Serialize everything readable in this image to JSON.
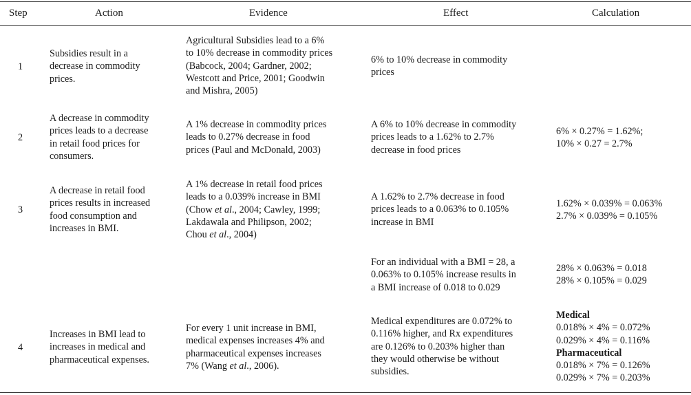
{
  "table": {
    "headers": {
      "step": "Step",
      "action": "Action",
      "evidence": "Evidence",
      "effect": "Effect",
      "calculation": "Calculation"
    },
    "rows": [
      {
        "step": "1",
        "action": "Subsidies result in a\ndecrease in commodity\nprices.",
        "evidence": "Agricultural Subsidies lead to a 6%\nto 10% decrease in commodity prices\n(Babcock, 2004; Gardner, 2002;\nWestcott and Price, 2001; Goodwin\nand Mishra, 2005)",
        "effect": "6% to 10% decrease in commodity\nprices",
        "calculation": ""
      },
      {
        "step": "2",
        "action": "A decrease in commodity\nprices leads to a decrease\nin retail food prices for\nconsumers.",
        "evidence": "A 1% decrease in commodity prices\nleads to 0.27% decrease in food\nprices (Paul and McDonald, 2003)",
        "effect": "A 6% to 10% decrease in commodity\nprices leads to a 1.62% to 2.7%\ndecrease in food prices",
        "calculation": "6% × 0.27% = 1.62%;\n10% × 0.27 = 2.7%"
      },
      {
        "step": "3",
        "action": "A decrease in retail food\nprices results in increased\nfood consumption and\nincreases in BMI.",
        "evidence_lines": [
          "A 1% decrease in retail food prices",
          "leads to a 0.039% increase in BMI",
          "(Chow ",
          "et al",
          "., 2004; Cawley, 1999;",
          "Lakdawala and Philipson, 2002;",
          "Chou ",
          "et al",
          "., 2004)"
        ],
        "effect": "A 1.62% to 2.7% decrease in food\nprices leads to a 0.063% to 0.105%\nincrease in BMI",
        "calculation": "1.62% × 0.039% = 0.063%\n2.7% × 0.039% = 0.105%"
      },
      {
        "step": "",
        "action": "",
        "evidence": "",
        "effect": "For an individual with a BMI = 28, a\n0.063% to 0.105% increase results in\na BMI increase of 0.018 to 0.029",
        "calculation": "28% × 0.063% = 0.018\n28% × 0.105% = 0.029"
      },
      {
        "step": "4",
        "action": "Increases in BMI lead to\nincreases in medical and\npharmaceutical expenses.",
        "evidence_lines": [
          "For every 1 unit increase in BMI,",
          "medical expenses increases 4% and",
          "pharmaceutical expenses increases",
          "7% (Wang ",
          "et al",
          "., 2006)."
        ],
        "effect": "Medical expenditures are 0.072% to\n0.116% higher, and Rx expenditures\nare 0.126% to 0.203% higher than\nthey would otherwise be without\nsubsidies.",
        "calc_medical_label": "Medical",
        "calc_medical": "0.018% × 4% = 0.072%\n0.029% × 4% = 0.116%",
        "calc_pharma_label": "Pharmaceutical",
        "calc_pharma": "0.018% × 7% = 0.126%\n0.029% × 7% = 0.203%"
      }
    ]
  }
}
